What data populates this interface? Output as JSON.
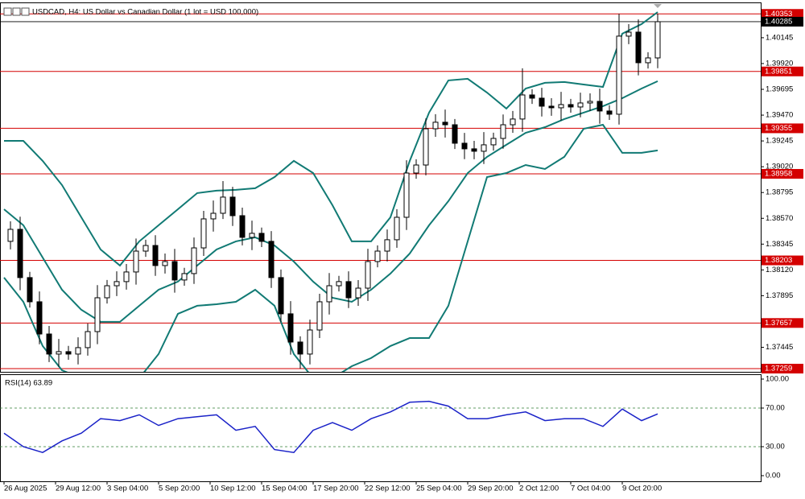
{
  "chart_data": [
    {
      "type": "candlestick",
      "title": "USDCAD, H4:  US Dollar vs Canadian Dollar (1 lot = USD 100,000)",
      "xlim": [
        -1.25,
        235
      ],
      "ylim": [
        1.37231,
        1.40418
      ],
      "yticks": [
        1.40145,
        {
          "value": 1.3992,
          "label": "1.39920"
        },
        1.39695,
        {
          "value": 1.3947,
          "label": "1.39470"
        },
        1.39245,
        {
          "value": 1.3902,
          "label": "1.39020"
        },
        1.38795,
        {
          "value": 1.3857,
          "label": "1.38570"
        },
        1.38345,
        {
          "value": 1.3812,
          "label": "1.38120"
        },
        1.37895,
        1.37445
      ],
      "levels": [
        1.40353,
        1.39851,
        1.39355,
        1.38958,
        1.38203,
        1.37657,
        1.37259
      ],
      "level_color": "#d40000",
      "current_price": 1.40285,
      "x": [
        2,
        5,
        8,
        11,
        14,
        17,
        20,
        23,
        26,
        29,
        32,
        35,
        38,
        41,
        44,
        47,
        50,
        53,
        56,
        59,
        62,
        65,
        68,
        71,
        74,
        77,
        80,
        83,
        86,
        89,
        92,
        95,
        98,
        101,
        104,
        107,
        110,
        113,
        116,
        119,
        122,
        125,
        128,
        131,
        134,
        137,
        140,
        143,
        146,
        149,
        152,
        155,
        158,
        161,
        164,
        167,
        170,
        173,
        176,
        179,
        182,
        185,
        188,
        191,
        194,
        197,
        200,
        203
      ],
      "open": [
        1.38369,
        1.38474,
        1.38053,
        1.37842,
        1.37561,
        1.37386,
        1.37407,
        1.37386,
        1.37442,
        1.37582,
        1.37877,
        1.37982,
        1.38018,
        1.38102,
        1.38284,
        1.38333,
        1.38158,
        1.38193,
        1.38032,
        1.38088,
        1.38312,
        1.38565,
        1.38614,
        1.38755,
        1.38593,
        1.38404,
        1.38439,
        1.38369,
        1.38053,
        1.37737,
        1.37491,
        1.37386,
        1.37596,
        1.37842,
        1.37982,
        1.38018,
        1.37877,
        1.37961,
        1.38193,
        1.38284,
        1.38383,
        1.38579,
        1.38965,
        1.39035,
        1.39351,
        1.39408,
        1.39386,
        1.39225,
        1.39176,
        1.39155,
        1.39211,
        1.39267,
        1.39386,
        1.39436,
        1.39646,
        1.39618,
        1.39548,
        1.39534,
        1.39562,
        1.39541,
        1.39576,
        1.3959,
        1.39506,
        1.39478,
        1.40159,
        1.40194,
        1.39927,
        1.39969
      ],
      "high": [
        1.38544,
        1.38584,
        1.38103,
        1.37932,
        1.37631,
        1.37518,
        1.37457,
        1.37532,
        1.37652,
        1.37987,
        1.38032,
        1.38108,
        1.38172,
        1.38394,
        1.38383,
        1.38423,
        1.38263,
        1.38303,
        1.38138,
        1.38402,
        1.38635,
        1.38725,
        1.38895,
        1.38845,
        1.38663,
        1.3855,
        1.38489,
        1.38459,
        1.38123,
        1.37848,
        1.37541,
        1.37686,
        1.37912,
        1.38093,
        1.38068,
        1.38108,
        1.38031,
        1.38304,
        1.38334,
        1.38473,
        1.38649,
        1.39076,
        1.39085,
        1.39441,
        1.39478,
        1.39519,
        1.39436,
        1.39315,
        1.39246,
        1.39322,
        1.39317,
        1.39476,
        1.39506,
        1.39878,
        1.39696,
        1.39708,
        1.39618,
        1.39673,
        1.39612,
        1.39666,
        1.3966,
        1.39701,
        1.39556,
        1.40353,
        1.40264,
        1.40305,
        1.40019,
        1.40353
      ],
      "low": [
        1.38299,
        1.37943,
        1.37792,
        1.37471,
        1.37316,
        1.37276,
        1.37336,
        1.37296,
        1.37372,
        1.37472,
        1.37827,
        1.37892,
        1.37948,
        1.37992,
        1.38234,
        1.38068,
        1.38088,
        1.37922,
        1.37982,
        1.37998,
        1.38242,
        1.38454,
        1.38564,
        1.38503,
        1.38334,
        1.38293,
        1.38319,
        1.37963,
        1.37667,
        1.37381,
        1.37259,
        1.37296,
        1.37526,
        1.37731,
        1.37932,
        1.37787,
        1.37807,
        1.3785,
        1.38143,
        1.38194,
        1.38313,
        1.38468,
        1.38915,
        1.38945,
        1.39281,
        1.39275,
        1.39175,
        1.39086,
        1.39085,
        1.39044,
        1.39161,
        1.39177,
        1.39316,
        1.39325,
        1.39568,
        1.39458,
        1.39464,
        1.39423,
        1.39491,
        1.39451,
        1.39506,
        1.39395,
        1.39428,
        1.39388,
        1.40089,
        1.39817,
        1.39877,
        1.39879
      ],
      "close": [
        1.38474,
        1.38053,
        1.37842,
        1.37561,
        1.37386,
        1.37407,
        1.37386,
        1.37442,
        1.37582,
        1.37877,
        1.37982,
        1.38018,
        1.38102,
        1.38284,
        1.38333,
        1.38158,
        1.38193,
        1.38032,
        1.38088,
        1.38312,
        1.38565,
        1.38614,
        1.38755,
        1.38593,
        1.38404,
        1.38439,
        1.38369,
        1.38053,
        1.37737,
        1.37491,
        1.37386,
        1.37596,
        1.37842,
        1.37982,
        1.38018,
        1.37877,
        1.37961,
        1.38193,
        1.38284,
        1.38383,
        1.38579,
        1.38965,
        1.39035,
        1.39351,
        1.39408,
        1.39386,
        1.39225,
        1.39176,
        1.39155,
        1.39211,
        1.39267,
        1.39386,
        1.39436,
        1.39646,
        1.39618,
        1.39548,
        1.39534,
        1.39562,
        1.39541,
        1.39576,
        1.3959,
        1.39506,
        1.39478,
        1.40159,
        1.40194,
        1.39927,
        1.39969,
        1.40285
      ],
      "bands": {
        "color": "#117a74",
        "x": [
          0,
          6,
          12,
          18,
          24,
          30,
          36,
          42,
          48,
          54,
          60,
          66,
          72,
          78,
          84,
          90,
          96,
          102,
          108,
          114,
          120,
          126,
          132,
          138,
          144,
          150,
          156,
          162,
          168,
          174,
          180,
          186,
          192,
          198,
          203
        ],
        "upper": [
          1.39246,
          1.39246,
          1.39071,
          1.3886,
          1.38579,
          1.38298,
          1.38158,
          1.38369,
          1.38509,
          1.38649,
          1.3879,
          1.38811,
          1.38818,
          1.38832,
          1.3893,
          1.39071,
          1.38965,
          1.38684,
          1.38369,
          1.38369,
          1.38579,
          1.39071,
          1.39492,
          1.39773,
          1.39787,
          1.39667,
          1.39527,
          1.39702,
          1.39752,
          1.39759,
          1.39737,
          1.39716,
          1.4018,
          1.40264,
          1.40369
        ],
        "middle": [
          1.38649,
          1.38509,
          1.38228,
          1.37947,
          1.37772,
          1.37667,
          1.37667,
          1.37807,
          1.37947,
          1.38018,
          1.38158,
          1.38298,
          1.38369,
          1.38404,
          1.38333,
          1.38193,
          1.38018,
          1.37877,
          1.37842,
          1.37947,
          1.38088,
          1.38263,
          1.38509,
          1.3872,
          1.38965,
          1.39106,
          1.39211,
          1.39316,
          1.39365,
          1.39436,
          1.39492,
          1.39548,
          1.39618,
          1.39702,
          1.39766
        ],
        "lower": [
          1.38053,
          1.37842,
          1.37456,
          1.37245,
          1.37175,
          1.37175,
          1.37175,
          1.37175,
          1.37386,
          1.37737,
          1.37807,
          1.37821,
          1.37842,
          1.37947,
          1.37807,
          1.37386,
          1.37175,
          1.37175,
          1.3728,
          1.37351,
          1.37456,
          1.37526,
          1.37526,
          1.37807,
          1.38369,
          1.3893,
          1.38965,
          1.39035,
          1.39,
          1.39106,
          1.39351,
          1.39386,
          1.39141,
          1.39141,
          1.39162
        ]
      }
    },
    {
      "type": "line",
      "title": "RSI(14) 63.89",
      "xlim": [
        -1.25,
        235
      ],
      "ylim": [
        -5.83,
        104.17
      ],
      "yticks": [
        {
          "value": 100,
          "label": "100.00"
        },
        {
          "value": 70,
          "label": "70.00"
        },
        {
          "value": 30,
          "label": "30.00"
        },
        {
          "value": 0,
          "label": "0.00"
        }
      ],
      "levels": [
        70,
        30
      ],
      "xticks": [
        {
          "value": 0,
          "label": "26 Aug 2025"
        },
        {
          "value": 16,
          "label": "29 Aug 12:00"
        },
        {
          "value": 32,
          "label": "3 Sep 04:00"
        },
        {
          "value": 48,
          "label": "5 Sep 20:00"
        },
        {
          "value": 64,
          "label": "10 Sep 12:00"
        },
        {
          "value": 80,
          "label": "15 Sep 04:00"
        },
        {
          "value": 96,
          "label": "17 Sep 20:00"
        },
        {
          "value": 112,
          "label": "22 Sep 12:00"
        },
        {
          "value": 128,
          "label": "25 Sep 04:00"
        },
        {
          "value": 144,
          "label": "29 Sep 20:00"
        },
        {
          "value": 160,
          "label": "2 Oct 12:00"
        },
        {
          "value": 176,
          "label": "7 Oct 04:00"
        },
        {
          "value": 192,
          "label": "9 Oct 20:00"
        }
      ],
      "x": [
        0,
        6,
        12,
        18,
        24,
        30,
        36,
        42,
        48,
        54,
        60,
        66,
        72,
        78,
        84,
        90,
        96,
        102,
        108,
        114,
        120,
        126,
        132,
        138,
        144,
        150,
        156,
        162,
        168,
        174,
        180,
        186,
        192,
        198,
        203
      ],
      "color": "#1a22c8",
      "values": [
        44,
        30,
        24,
        36,
        44,
        59,
        57,
        63,
        52,
        59,
        61,
        63,
        47,
        51,
        27,
        24,
        47,
        55,
        47,
        59,
        66,
        76,
        77,
        72,
        59,
        59,
        63,
        66,
        57,
        59,
        59,
        51,
        69,
        57,
        63.89
      ]
    }
  ]
}
